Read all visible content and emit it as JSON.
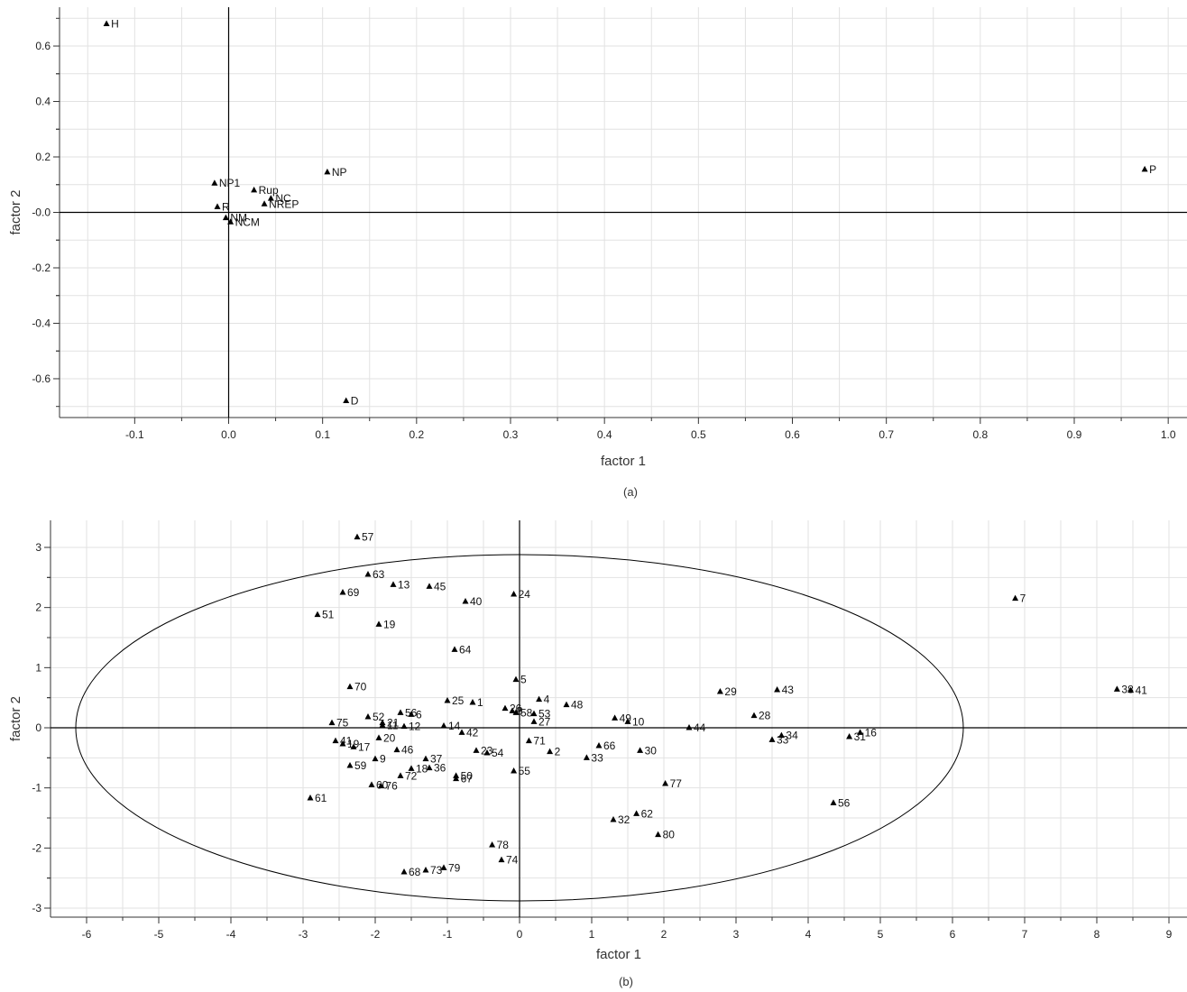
{
  "chart_data": [
    {
      "type": "scatter",
      "caption": "(a)",
      "xlabel": "factor 1",
      "ylabel": "factor 2",
      "xlim": [
        -0.18,
        1.02
      ],
      "ylim": [
        -0.74,
        0.74
      ],
      "x_ticks": [
        -0.1,
        0.0,
        0.1,
        0.2,
        0.3,
        0.4,
        0.5,
        0.6,
        0.7,
        0.8,
        0.9,
        1.0
      ],
      "x_tick_labels": [
        "-0.1",
        "0.0",
        "0.1",
        "0.2",
        "0.3",
        "0.4",
        "0.5",
        "0.6",
        "0.7",
        "0.8",
        "0.9",
        "1.0"
      ],
      "y_ticks": [
        -0.6,
        -0.4,
        -0.2,
        0.0,
        0.2,
        0.4,
        0.6
      ],
      "y_tick_labels": [
        "-0.6",
        "-0.4",
        "-0.2",
        "-0.0",
        "0.2",
        "0.4",
        "0.6"
      ],
      "grid": true,
      "reference_lines": {
        "x": 0,
        "y": 0
      },
      "points": [
        {
          "label": "H",
          "x": -0.13,
          "y": 0.68
        },
        {
          "label": "NP",
          "x": 0.105,
          "y": 0.145
        },
        {
          "label": "P",
          "x": 0.975,
          "y": 0.155
        },
        {
          "label": "NP1",
          "x": -0.015,
          "y": 0.105
        },
        {
          "label": "Rup",
          "x": 0.027,
          "y": 0.08
        },
        {
          "label": "NC",
          "x": 0.045,
          "y": 0.05
        },
        {
          "label": "NREP",
          "x": 0.038,
          "y": 0.03
        },
        {
          "label": "R",
          "x": -0.012,
          "y": 0.02
        },
        {
          "label": "NM",
          "x": -0.003,
          "y": -0.02
        },
        {
          "label": "NCM",
          "x": 0.002,
          "y": -0.035
        },
        {
          "label": "D",
          "x": 0.125,
          "y": -0.68
        }
      ]
    },
    {
      "type": "scatter",
      "caption": "(b)",
      "xlabel": "factor 1",
      "ylabel": "factor 2",
      "xlim": [
        -6.5,
        9.25
      ],
      "ylim": [
        -3.15,
        3.45
      ],
      "x_ticks": [
        -6,
        -5,
        -4,
        -3,
        -2,
        -1,
        0,
        1,
        2,
        3,
        4,
        5,
        6,
        7,
        8,
        9
      ],
      "x_tick_labels": [
        "-6",
        "-5",
        "-4",
        "-3",
        "-2",
        "-1",
        "0",
        "1",
        "2",
        "3",
        "4",
        "5",
        "6",
        "7",
        "8",
        "9"
      ],
      "y_ticks": [
        -3,
        -2,
        -1,
        0,
        1,
        2,
        3
      ],
      "y_tick_labels": [
        "-3",
        "-2",
        "-1",
        "0",
        "1",
        "2",
        "3"
      ],
      "grid": true,
      "reference_lines": {
        "x": 0,
        "y": 0
      },
      "ellipse": {
        "cx": 0,
        "cy": 0,
        "rx": 6.15,
        "ry": 2.88
      },
      "points": [
        {
          "label": "57",
          "x": -2.25,
          "y": 3.17
        },
        {
          "label": "63",
          "x": -2.1,
          "y": 2.55
        },
        {
          "label": "13",
          "x": -1.75,
          "y": 2.38
        },
        {
          "label": "45",
          "x": -1.25,
          "y": 2.35
        },
        {
          "label": "69",
          "x": -2.45,
          "y": 2.25
        },
        {
          "label": "24",
          "x": -0.08,
          "y": 2.22
        },
        {
          "label": "40",
          "x": -0.75,
          "y": 2.1
        },
        {
          "label": "7",
          "x": 6.87,
          "y": 2.15
        },
        {
          "label": "51",
          "x": -2.8,
          "y": 1.88
        },
        {
          "label": "19",
          "x": -1.95,
          "y": 1.72
        },
        {
          "label": "64",
          "x": -0.9,
          "y": 1.3
        },
        {
          "label": "5",
          "x": -0.05,
          "y": 0.8
        },
        {
          "label": "70",
          "x": -2.35,
          "y": 0.68
        },
        {
          "label": "29",
          "x": 2.78,
          "y": 0.6
        },
        {
          "label": "43",
          "x": 3.57,
          "y": 0.63
        },
        {
          "label": "38",
          "x": 8.28,
          "y": 0.64
        },
        {
          "label": "41",
          "x": 8.47,
          "y": 0.62
        },
        {
          "label": "25",
          "x": -1.0,
          "y": 0.45
        },
        {
          "label": "1",
          "x": -0.65,
          "y": 0.42
        },
        {
          "label": "4",
          "x": 0.27,
          "y": 0.47
        },
        {
          "label": "48",
          "x": 0.65,
          "y": 0.38
        },
        {
          "label": "26",
          "x": -0.2,
          "y": 0.32
        },
        {
          "label": "8",
          "x": -0.1,
          "y": 0.28
        },
        {
          "label": "58",
          "x": -0.05,
          "y": 0.25
        },
        {
          "label": "53",
          "x": 0.2,
          "y": 0.23
        },
        {
          "label": "56",
          "x": -1.65,
          "y": 0.25
        },
        {
          "label": "6",
          "x": -1.5,
          "y": 0.22
        },
        {
          "label": "52",
          "x": -2.1,
          "y": 0.18
        },
        {
          "label": "28",
          "x": 3.25,
          "y": 0.2
        },
        {
          "label": "49",
          "x": 1.32,
          "y": 0.16
        },
        {
          "label": "10",
          "x": 1.5,
          "y": 0.1
        },
        {
          "label": "27",
          "x": 0.2,
          "y": 0.1
        },
        {
          "label": "75",
          "x": -2.6,
          "y": 0.08
        },
        {
          "label": "21",
          "x": -1.9,
          "y": 0.08
        },
        {
          "label": "11",
          "x": -1.9,
          "y": 0.04
        },
        {
          "label": "12",
          "x": -1.6,
          "y": 0.02
        },
        {
          "label": "14",
          "x": -1.05,
          "y": 0.03
        },
        {
          "label": "44",
          "x": 2.35,
          "y": 0.0
        },
        {
          "label": "42",
          "x": -0.8,
          "y": -0.08
        },
        {
          "label": "16",
          "x": 4.72,
          "y": -0.08
        },
        {
          "label": "34",
          "x": 3.63,
          "y": -0.13
        },
        {
          "label": "31",
          "x": 4.57,
          "y": -0.15
        },
        {
          "label": "33",
          "x": 3.5,
          "y": -0.2
        },
        {
          "label": "20",
          "x": -1.95,
          "y": -0.17
        },
        {
          "label": "71",
          "x": 0.13,
          "y": -0.22
        },
        {
          "label": "41b",
          "x": -2.55,
          "y": -0.22
        },
        {
          "label": "19b",
          "x": -2.45,
          "y": -0.27
        },
        {
          "label": "17",
          "x": -2.3,
          "y": -0.32
        },
        {
          "label": "66",
          "x": 1.1,
          "y": -0.3
        },
        {
          "label": "46",
          "x": -1.7,
          "y": -0.37
        },
        {
          "label": "23",
          "x": -0.6,
          "y": -0.38
        },
        {
          "label": "54",
          "x": -0.45,
          "y": -0.42
        },
        {
          "label": "2",
          "x": 0.42,
          "y": -0.4
        },
        {
          "label": "30",
          "x": 1.67,
          "y": -0.38
        },
        {
          "label": "9",
          "x": -2.0,
          "y": -0.52
        },
        {
          "label": "37",
          "x": -1.3,
          "y": -0.52
        },
        {
          "label": "33b",
          "x": 0.93,
          "y": -0.5
        },
        {
          "label": "59",
          "x": -2.35,
          "y": -0.63
        },
        {
          "label": "18",
          "x": -1.5,
          "y": -0.68
        },
        {
          "label": "36",
          "x": -1.25,
          "y": -0.67
        },
        {
          "label": "55",
          "x": -0.08,
          "y": -0.72
        },
        {
          "label": "72",
          "x": -1.65,
          "y": -0.8
        },
        {
          "label": "50",
          "x": -0.88,
          "y": -0.8
        },
        {
          "label": "67",
          "x": -0.88,
          "y": -0.85
        },
        {
          "label": "77",
          "x": 2.02,
          "y": -0.93
        },
        {
          "label": "60",
          "x": -2.05,
          "y": -0.95
        },
        {
          "label": "76",
          "x": -1.92,
          "y": -0.97
        },
        {
          "label": "61",
          "x": -2.9,
          "y": -1.17
        },
        {
          "label": "56b",
          "x": 4.35,
          "y": -1.25
        },
        {
          "label": "62",
          "x": 1.62,
          "y": -1.43
        },
        {
          "label": "32",
          "x": 1.3,
          "y": -1.53
        },
        {
          "label": "80",
          "x": 1.92,
          "y": -1.78
        },
        {
          "label": "78",
          "x": -0.38,
          "y": -1.95
        },
        {
          "label": "74",
          "x": -0.25,
          "y": -2.2
        },
        {
          "label": "68",
          "x": -1.6,
          "y": -2.4
        },
        {
          "label": "73",
          "x": -1.3,
          "y": -2.37
        },
        {
          "label": "79",
          "x": -1.05,
          "y": -2.33
        }
      ]
    }
  ]
}
